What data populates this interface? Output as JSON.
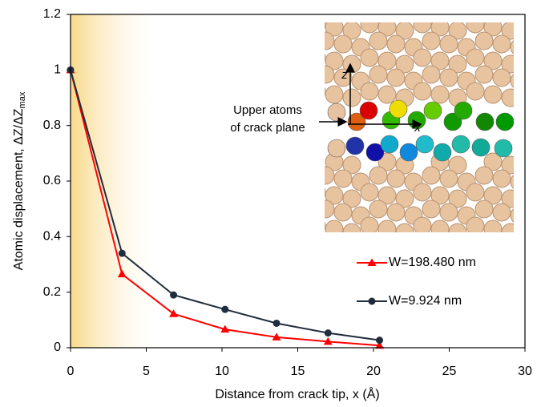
{
  "chart_data": {
    "type": "line",
    "x_label": "Distance from crack tip, x (Å)",
    "y_label": "Atomic displacement, ΔZ/ΔZ",
    "y_label_sub": "max",
    "xlim": [
      0,
      30
    ],
    "xticks": [
      0,
      5,
      10,
      15,
      20,
      25,
      30
    ],
    "ylim": [
      0,
      1.2
    ],
    "yticks": [
      0,
      0.2,
      0.4,
      0.6,
      0.8,
      1,
      1.2
    ],
    "legend": "right",
    "annotations": [
      "Upper atoms",
      "of crack plane",
      "z",
      "x"
    ],
    "series": [
      {
        "name": "W=198.480 nm",
        "color": "#ff0000",
        "marker": "triangle",
        "x": [
          0,
          3.4,
          6.8,
          10.2,
          13.6,
          17.0,
          20.4
        ],
        "values": [
          1,
          0.265,
          0.122,
          0.066,
          0.038,
          0.022,
          0.008
        ]
      },
      {
        "name": "W=9.924 nm",
        "color": "#1f2d3d",
        "marker": "circle",
        "x": [
          0,
          3.4,
          6.8,
          10.2,
          13.6,
          17.0,
          20.4
        ],
        "values": [
          1,
          0.34,
          0.19,
          0.138,
          0.088,
          0.053,
          0.027
        ]
      }
    ]
  }
}
